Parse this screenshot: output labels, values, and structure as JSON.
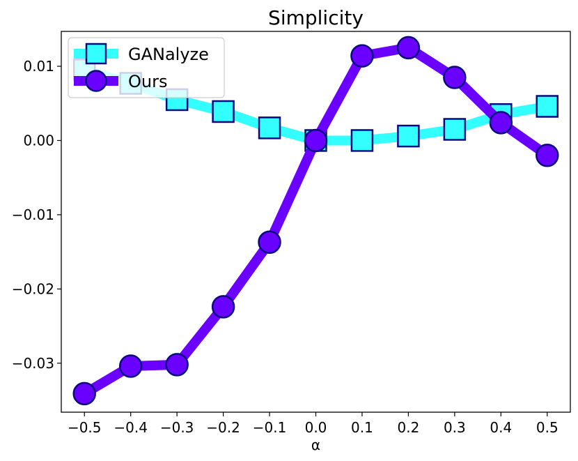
{
  "chart_data": {
    "type": "line",
    "title": "Simplicity",
    "xlabel": "α",
    "ylabel": "",
    "x": [
      -0.5,
      -0.4,
      -0.3,
      -0.2,
      -0.1,
      0.0,
      0.1,
      0.2,
      0.3,
      0.4,
      0.5
    ],
    "x_tick_labels": [
      "−0.5",
      "−0.4",
      "−0.3",
      "−0.2",
      "−0.1",
      "0.0",
      "0.1",
      "0.2",
      "0.3",
      "0.4",
      "0.5"
    ],
    "y_ticks": [
      -0.03,
      -0.02,
      -0.01,
      0.0,
      0.01
    ],
    "y_tick_labels": [
      "−0.03",
      "−0.02",
      "−0.01",
      "0.00",
      "0.01"
    ],
    "xlim": [
      -0.55,
      0.55
    ],
    "ylim": [
      -0.0366,
      0.0147
    ],
    "grid": false,
    "legend_position": "top-left",
    "series": [
      {
        "name": "GANalyze",
        "marker": "square",
        "line_color": "#33ffff",
        "marker_edge": "#0a0a80",
        "values": [
          0.0095,
          0.0077,
          0.0055,
          0.0039,
          0.0017,
          0.0,
          0.0,
          0.0006,
          0.0015,
          0.0035,
          0.0046
        ]
      },
      {
        "name": "Ours",
        "marker": "circle",
        "line_color": "#6a00ff",
        "marker_edge": "#0a0a80",
        "values": [
          -0.0341,
          -0.0304,
          -0.0302,
          -0.0224,
          -0.0137,
          0.0,
          0.0114,
          0.0125,
          0.0085,
          0.0024,
          -0.002
        ]
      }
    ]
  }
}
